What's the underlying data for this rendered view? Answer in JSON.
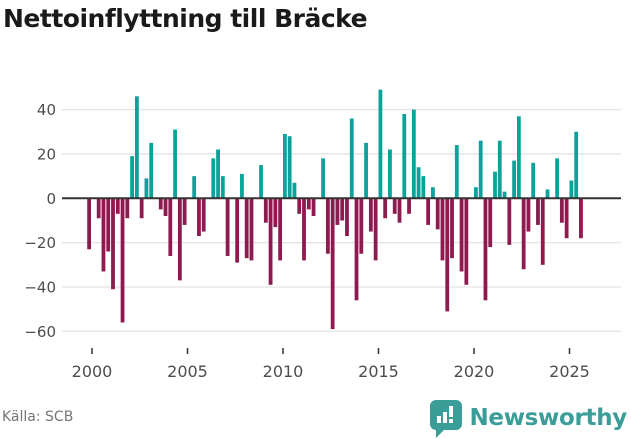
{
  "title": "Nettoinflyttning till Bräcke",
  "source": "Källa: SCB",
  "logo": {
    "text": "Newsworthy"
  },
  "colors": {
    "positive": "#0BA29A",
    "negative": "#8E1A4F",
    "grid": "#E3E3E3",
    "zero_line": "#333333",
    "axis_text": "#4D4D4D",
    "tick_mark": "#333333",
    "title_text": "#1A1A1A",
    "source_text": "#757575",
    "logo_teal": "#3A9D98"
  },
  "chart_data": {
    "type": "bar",
    "title": "Nettoinflyttning till Bräcke",
    "frequency": "quarterly",
    "x_start": "1999 Q4",
    "x_end": "2025 Q3",
    "categories": [
      "1999 Q4",
      "2000 Q1",
      "2000 Q2",
      "2000 Q3",
      "2000 Q4",
      "2001 Q1",
      "2001 Q2",
      "2001 Q3",
      "2001 Q4",
      "2002 Q1",
      "2002 Q2",
      "2002 Q3",
      "2002 Q4",
      "2003 Q1",
      "2003 Q2",
      "2003 Q3",
      "2003 Q4",
      "2004 Q1",
      "2004 Q2",
      "2004 Q3",
      "2004 Q4",
      "2005 Q1",
      "2005 Q2",
      "2005 Q3",
      "2005 Q4",
      "2006 Q1",
      "2006 Q2",
      "2006 Q3",
      "2006 Q4",
      "2007 Q1",
      "2007 Q2",
      "2007 Q3",
      "2007 Q4",
      "2008 Q1",
      "2008 Q2",
      "2008 Q3",
      "2008 Q4",
      "2009 Q1",
      "2009 Q2",
      "2009 Q3",
      "2009 Q4",
      "2010 Q1",
      "2010 Q2",
      "2010 Q3",
      "2010 Q4",
      "2011 Q1",
      "2011 Q2",
      "2011 Q3",
      "2011 Q4",
      "2012 Q1",
      "2012 Q2",
      "2012 Q3",
      "2012 Q4",
      "2013 Q1",
      "2013 Q2",
      "2013 Q3",
      "2013 Q4",
      "2014 Q1",
      "2014 Q2",
      "2014 Q3",
      "2014 Q4",
      "2015 Q1",
      "2015 Q2",
      "2015 Q3",
      "2015 Q4",
      "2016 Q1",
      "2016 Q2",
      "2016 Q3",
      "2016 Q4",
      "2017 Q1",
      "2017 Q2",
      "2017 Q3",
      "2017 Q4",
      "2018 Q1",
      "2018 Q2",
      "2018 Q3",
      "2018 Q4",
      "2019 Q1",
      "2019 Q2",
      "2019 Q3",
      "2019 Q4",
      "2020 Q1",
      "2020 Q2",
      "2020 Q3",
      "2020 Q4",
      "2021 Q1",
      "2021 Q2",
      "2021 Q3",
      "2021 Q4",
      "2022 Q1",
      "2022 Q2",
      "2022 Q3",
      "2022 Q4",
      "2023 Q1",
      "2023 Q2",
      "2023 Q3",
      "2023 Q4",
      "2024 Q1",
      "2024 Q2",
      "2024 Q3",
      "2024 Q4",
      "2025 Q1",
      "2025 Q2",
      "2025 Q3"
    ],
    "values": [
      -23,
      0,
      -9,
      -33,
      -24,
      -41,
      -7,
      -56,
      -9,
      19,
      46,
      -9,
      9,
      25,
      0,
      -5,
      -8,
      -26,
      31,
      -37,
      -12,
      0,
      10,
      -17,
      -15,
      0,
      18,
      22,
      10,
      -26,
      0,
      -29,
      11,
      -27,
      -28,
      0,
      15,
      -11,
      -39,
      -13,
      -28,
      29,
      28,
      7,
      -7,
      -28,
      -5,
      -8,
      0,
      18,
      -25,
      -59,
      -12,
      -10,
      -17,
      36,
      -46,
      -25,
      25,
      -15,
      -28,
      49,
      -9,
      22,
      -7,
      -11,
      38,
      -7,
      40,
      14,
      10,
      -12,
      5,
      -14,
      -28,
      -51,
      -27,
      24,
      -33,
      -39,
      0,
      5,
      26,
      -46,
      -22,
      12,
      26,
      3,
      -21,
      17,
      37,
      -32,
      -15,
      16,
      -12,
      -30,
      4,
      0,
      18,
      -11,
      -18,
      8,
      30,
      -18
    ],
    "yticks": [
      40,
      20,
      0,
      -20,
      -40,
      -60
    ],
    "ytick_labels": [
      "40",
      "20",
      "0",
      "−20",
      "−40",
      "−60"
    ],
    "xticks": [
      2000,
      2005,
      2010,
      2015,
      2020,
      2025
    ],
    "xtick_labels": [
      "2000",
      "2005",
      "2010",
      "2015",
      "2020",
      "2025"
    ],
    "ylim": [
      -62,
      50
    ],
    "grid": "horizontal-only",
    "legend": "none",
    "bar_color_positive": "#0BA29A",
    "bar_color_negative": "#8E1A4F"
  }
}
